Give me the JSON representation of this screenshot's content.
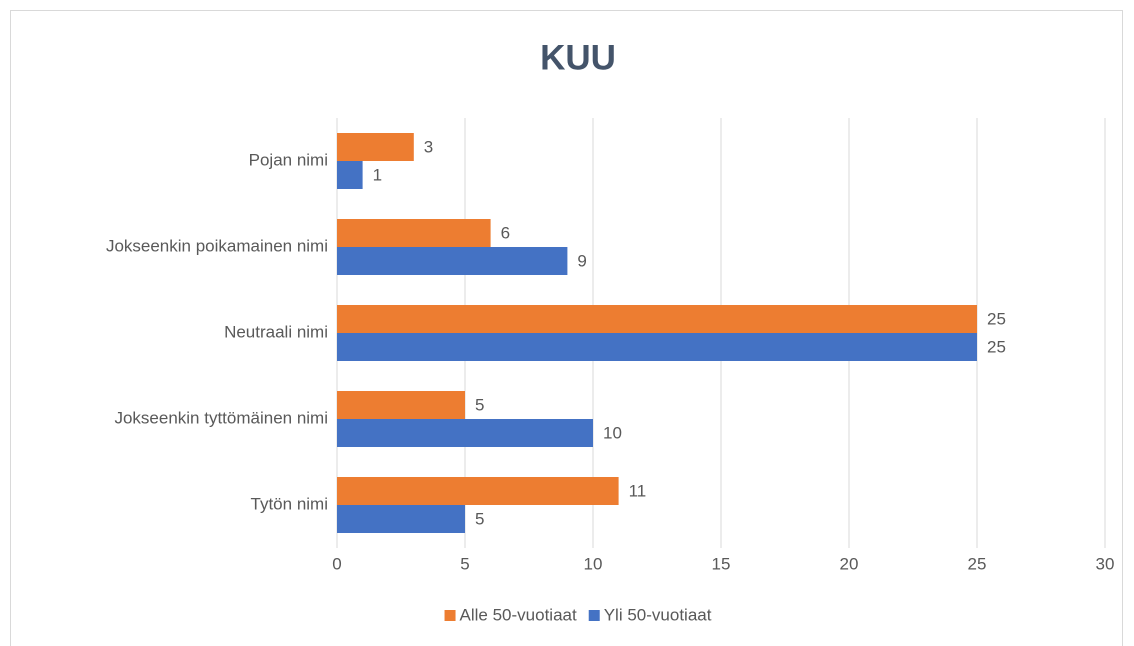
{
  "chart_data": {
    "type": "bar",
    "orientation": "horizontal",
    "title": "KUU",
    "categories": [
      "Pojan nimi",
      "Jokseenkin poikamainen nimi",
      "Neutraali nimi",
      "Jokseenkin tyttömäinen nimi",
      "Tytön nimi"
    ],
    "series": [
      {
        "name": "Alle 50-vuotiaat",
        "color": "#ed7d31",
        "values": [
          3,
          6,
          25,
          5,
          11
        ]
      },
      {
        "name": "Yli 50-vuotiaat",
        "color": "#4472c4",
        "values": [
          1,
          9,
          25,
          10,
          5
        ]
      }
    ],
    "xlim": [
      0,
      30
    ],
    "xticks": [
      0,
      5,
      10,
      15,
      20,
      25,
      30
    ],
    "grid": true,
    "legend": "bottom"
  }
}
